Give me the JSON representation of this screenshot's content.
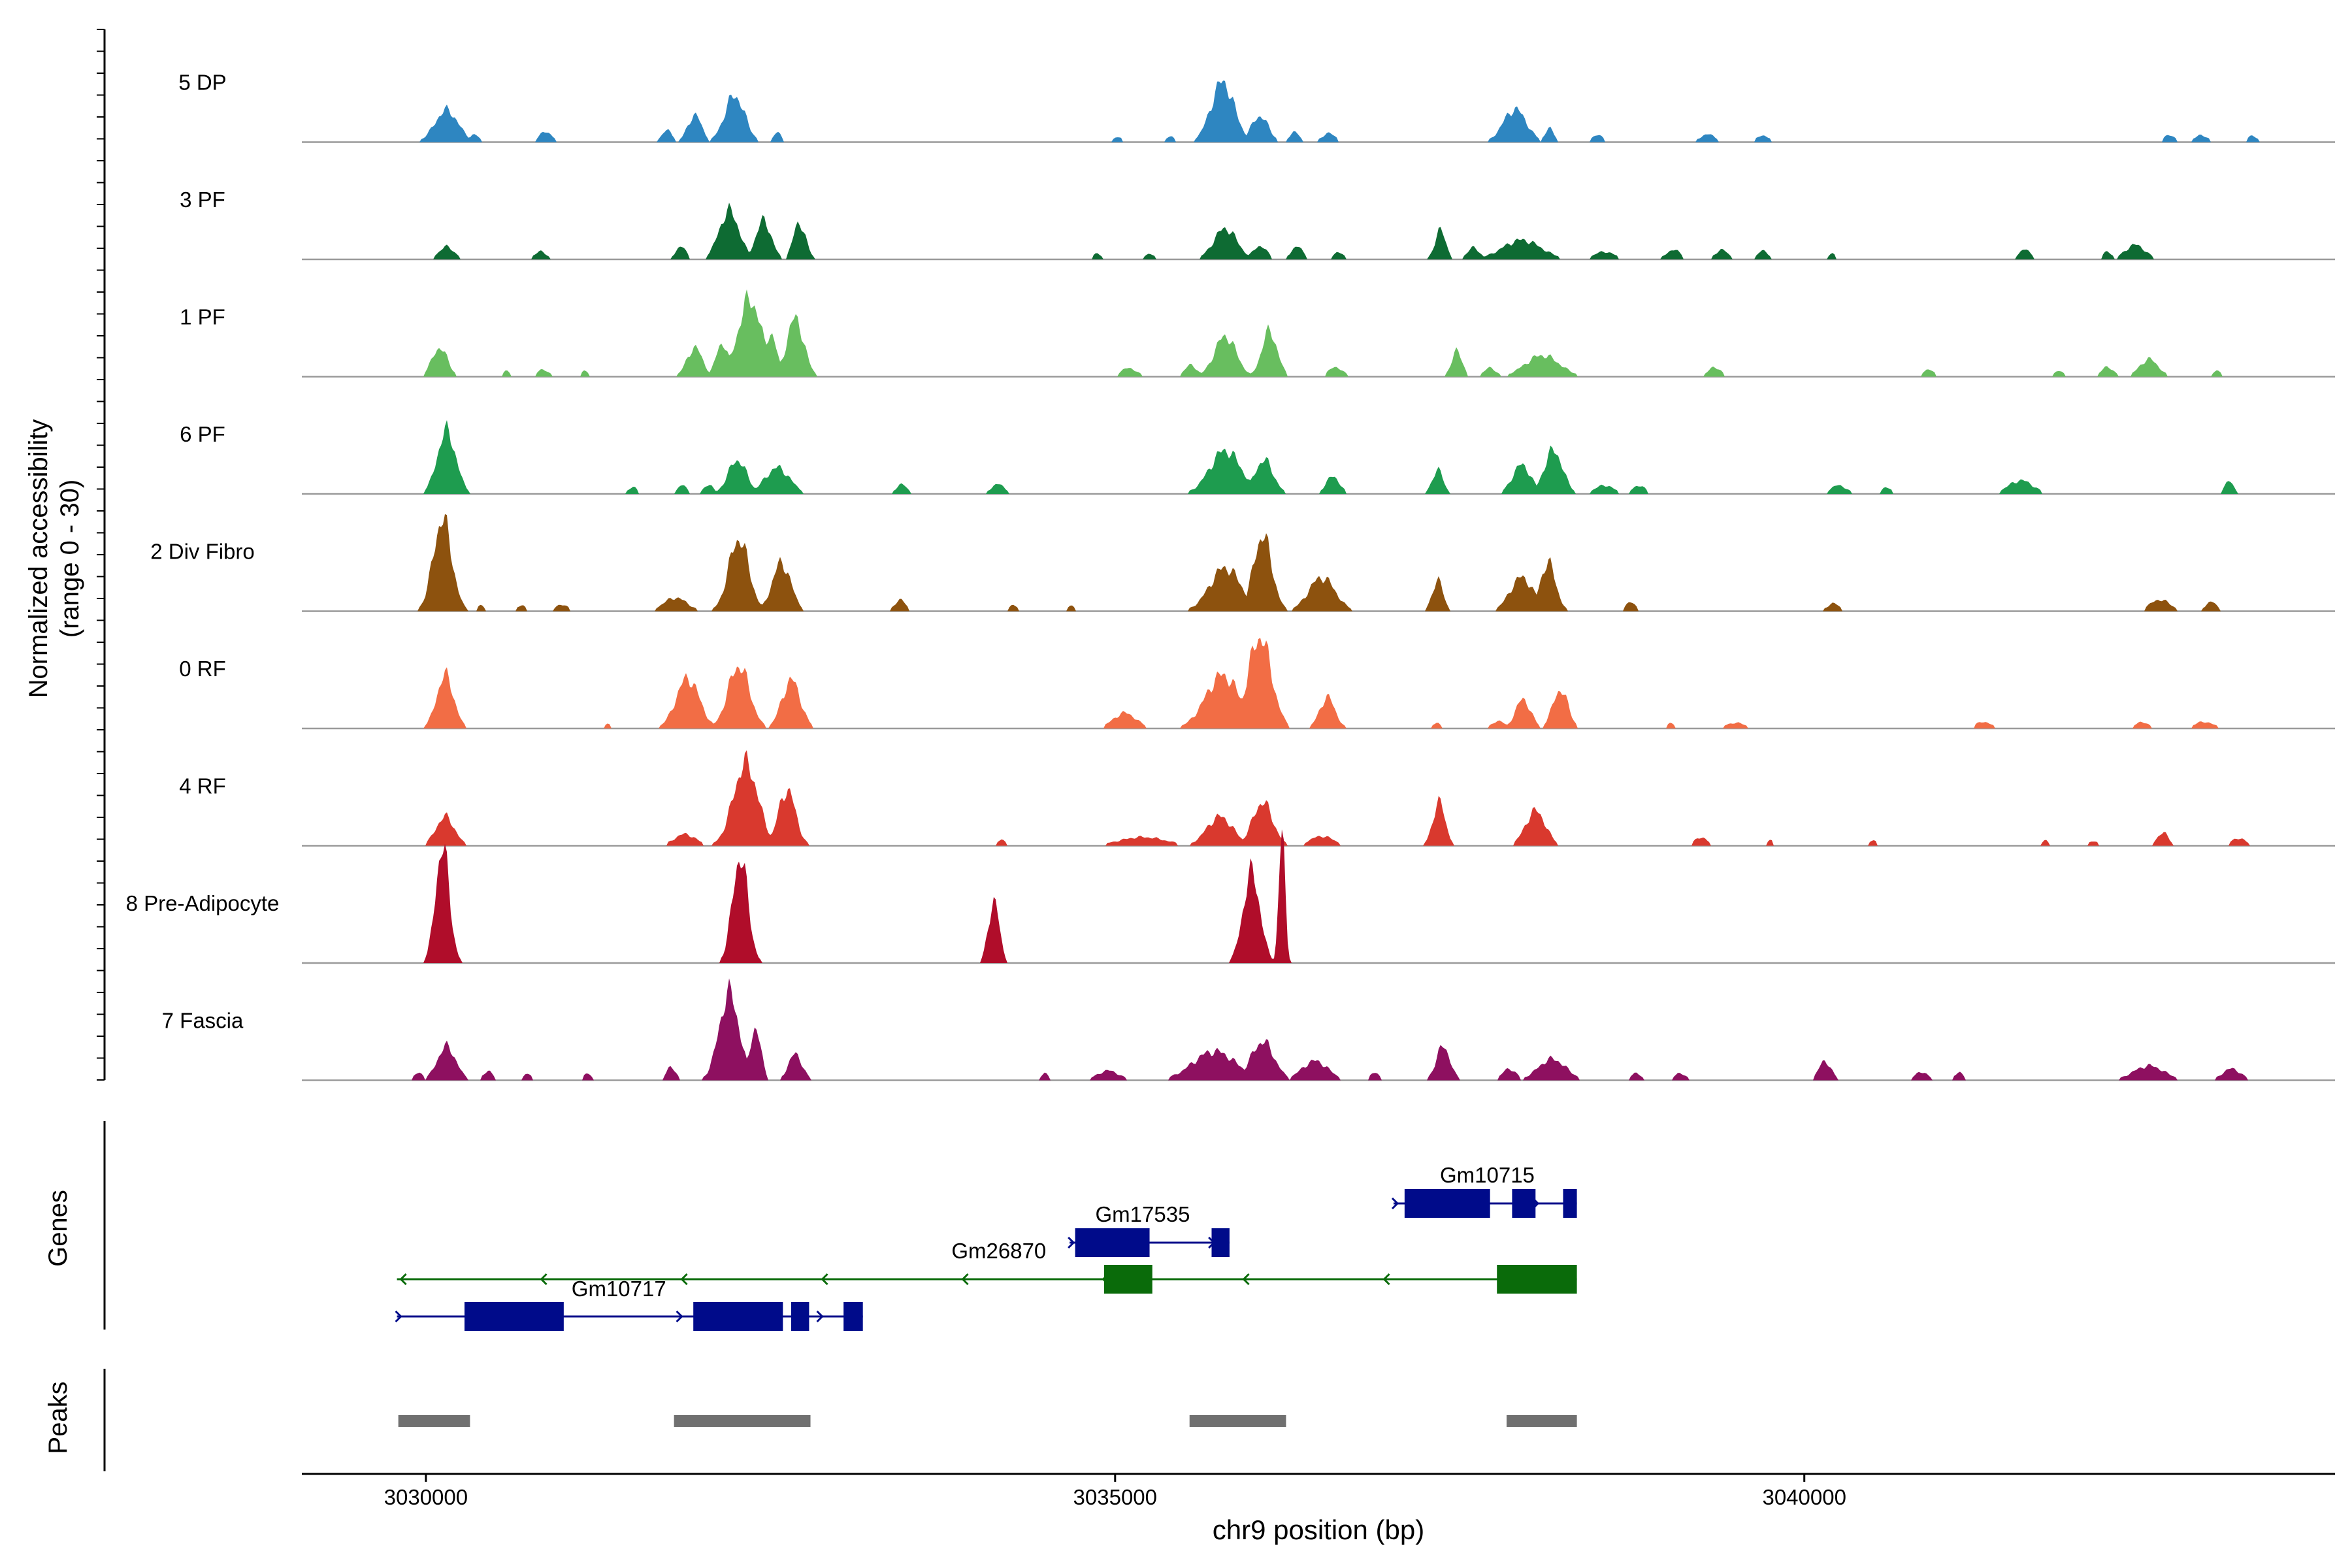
{
  "chart_data": {
    "type": "area",
    "title": "",
    "xlabel": "chr9 position (bp)",
    "ylabel_line1": "Normalized accessibility",
    "ylabel_line2": "(range 0 - 30)",
    "xlim": [
      3029100,
      3043850
    ],
    "ylim": [
      0,
      30
    ],
    "x_ticks": [
      3030000,
      3035000,
      3040000
    ],
    "x_tick_labels": [
      "3030000",
      "3035000",
      "3040000"
    ],
    "series": [
      {
        "name": "5 DP",
        "color": "#2E86C1",
        "peaks": [
          [
            3030150,
            150,
            0.33
          ],
          [
            3030350,
            60,
            0.08
          ],
          [
            3030870,
            80,
            0.11
          ],
          [
            3031750,
            70,
            0.12
          ],
          [
            3031950,
            90,
            0.28
          ],
          [
            3032240,
            130,
            0.48
          ],
          [
            3032550,
            50,
            0.1
          ],
          [
            3035020,
            50,
            0.06
          ],
          [
            3035400,
            50,
            0.06
          ],
          [
            3035780,
            150,
            0.62
          ],
          [
            3036050,
            110,
            0.27
          ],
          [
            3036300,
            60,
            0.11
          ],
          [
            3036550,
            90,
            0.09
          ],
          [
            3037900,
            150,
            0.34
          ],
          [
            3038150,
            60,
            0.14
          ],
          [
            3038500,
            80,
            0.07
          ],
          [
            3039300,
            100,
            0.08
          ],
          [
            3039700,
            80,
            0.07
          ],
          [
            3042650,
            80,
            0.07
          ],
          [
            3042880,
            90,
            0.07
          ],
          [
            3043250,
            60,
            0.07
          ]
        ]
      },
      {
        "name": "3 PF",
        "color": "#0E6B33",
        "peaks": [
          [
            3030150,
            100,
            0.13
          ],
          [
            3030830,
            80,
            0.08
          ],
          [
            3031850,
            70,
            0.13
          ],
          [
            3032200,
            130,
            0.5
          ],
          [
            3032450,
            100,
            0.4
          ],
          [
            3032710,
            80,
            0.38
          ],
          [
            3034870,
            60,
            0.06
          ],
          [
            3035250,
            60,
            0.06
          ],
          [
            3035800,
            150,
            0.32
          ],
          [
            3036050,
            90,
            0.14
          ],
          [
            3036320,
            80,
            0.13
          ],
          [
            3036620,
            60,
            0.08
          ],
          [
            3037360,
            70,
            0.3
          ],
          [
            3037600,
            80,
            0.12
          ],
          [
            3037950,
            250,
            0.2
          ],
          [
            3038550,
            130,
            0.08
          ],
          [
            3039050,
            90,
            0.1
          ],
          [
            3039400,
            80,
            0.1
          ],
          [
            3039700,
            60,
            0.1
          ],
          [
            3041600,
            80,
            0.1
          ],
          [
            3042400,
            130,
            0.15
          ],
          [
            3042200,
            60,
            0.08
          ],
          [
            3040200,
            50,
            0.06
          ]
        ]
      },
      {
        "name": "1 PF",
        "color": "#68BE5F",
        "peaks": [
          [
            3030100,
            100,
            0.3
          ],
          [
            3030580,
            50,
            0.06
          ],
          [
            3030850,
            80,
            0.07
          ],
          [
            3031150,
            50,
            0.06
          ],
          [
            3031950,
            100,
            0.3
          ],
          [
            3032150,
            80,
            0.35
          ],
          [
            3032350,
            150,
            0.8
          ],
          [
            3032500,
            80,
            0.45
          ],
          [
            3032680,
            110,
            0.6
          ],
          [
            3035100,
            100,
            0.09
          ],
          [
            3035550,
            80,
            0.12
          ],
          [
            3035800,
            140,
            0.42
          ],
          [
            3036120,
            100,
            0.47
          ],
          [
            3036600,
            90,
            0.1
          ],
          [
            3037480,
            70,
            0.26
          ],
          [
            3037720,
            80,
            0.09
          ],
          [
            3038100,
            220,
            0.22
          ],
          [
            3039350,
            80,
            0.1
          ],
          [
            3040900,
            80,
            0.07
          ],
          [
            3041850,
            60,
            0.06
          ],
          [
            3042200,
            80,
            0.1
          ],
          [
            3042500,
            120,
            0.18
          ],
          [
            3043000,
            60,
            0.06
          ]
        ]
      },
      {
        "name": "6 PF",
        "color": "#1E9C4F",
        "peaks": [
          [
            3030150,
            120,
            0.65
          ],
          [
            3031500,
            60,
            0.07
          ],
          [
            3031860,
            60,
            0.09
          ],
          [
            3032050,
            60,
            0.1
          ],
          [
            3032260,
            120,
            0.35
          ],
          [
            3032550,
            160,
            0.27
          ],
          [
            3033450,
            70,
            0.1
          ],
          [
            3034150,
            90,
            0.1
          ],
          [
            3035800,
            200,
            0.45
          ],
          [
            3036080,
            120,
            0.35
          ],
          [
            3036580,
            90,
            0.18
          ],
          [
            3037340,
            70,
            0.25
          ],
          [
            3037950,
            120,
            0.3
          ],
          [
            3038180,
            120,
            0.45
          ],
          [
            3038550,
            120,
            0.09
          ],
          [
            3038800,
            80,
            0.09
          ],
          [
            3040250,
            100,
            0.09
          ],
          [
            3040600,
            60,
            0.07
          ],
          [
            3041570,
            160,
            0.14
          ],
          [
            3043080,
            60,
            0.13
          ]
        ]
      },
      {
        "name": "2 Div Fibro",
        "color": "#8D520E",
        "peaks": [
          [
            3030120,
            120,
            0.95
          ],
          [
            3030400,
            50,
            0.06
          ],
          [
            3030690,
            60,
            0.06
          ],
          [
            3030990,
            80,
            0.07
          ],
          [
            3031810,
            150,
            0.14
          ],
          [
            3032270,
            130,
            0.75
          ],
          [
            3032580,
            120,
            0.5
          ],
          [
            3033440,
            70,
            0.12
          ],
          [
            3034260,
            60,
            0.06
          ],
          [
            3034680,
            50,
            0.06
          ],
          [
            3035800,
            200,
            0.45
          ],
          [
            3036070,
            120,
            0.78
          ],
          [
            3036500,
            170,
            0.35
          ],
          [
            3037340,
            70,
            0.32
          ],
          [
            3037950,
            150,
            0.35
          ],
          [
            3038140,
            100,
            0.5
          ],
          [
            3038740,
            70,
            0.09
          ],
          [
            3040210,
            80,
            0.08
          ],
          [
            3042580,
            130,
            0.12
          ],
          [
            3042950,
            70,
            0.1
          ]
        ]
      },
      {
        "name": "0 RF",
        "color": "#F26D45",
        "peaks": [
          [
            3030140,
            110,
            0.55
          ],
          [
            3031320,
            40,
            0.05
          ],
          [
            3031900,
            150,
            0.52
          ],
          [
            3032270,
            140,
            0.65
          ],
          [
            3032650,
            120,
            0.5
          ],
          [
            3035070,
            150,
            0.16
          ],
          [
            3035780,
            220,
            0.55
          ],
          [
            3036050,
            150,
            0.95
          ],
          [
            3036540,
            100,
            0.32
          ],
          [
            3037330,
            50,
            0.06
          ],
          [
            3037780,
            80,
            0.08
          ],
          [
            3037960,
            100,
            0.3
          ],
          [
            3038230,
            100,
            0.4
          ],
          [
            3039030,
            50,
            0.06
          ],
          [
            3039500,
            120,
            0.06
          ],
          [
            3041300,
            100,
            0.07
          ],
          [
            3042450,
            80,
            0.07
          ],
          [
            3042900,
            120,
            0.07
          ]
        ]
      },
      {
        "name": "4 RF",
        "color": "#D9392E",
        "peaks": [
          [
            3030140,
            120,
            0.3
          ],
          [
            3031880,
            140,
            0.12
          ],
          [
            3032320,
            160,
            0.85
          ],
          [
            3032620,
            110,
            0.58
          ],
          [
            3034180,
            60,
            0.06
          ],
          [
            3035200,
            300,
            0.09
          ],
          [
            3035760,
            170,
            0.3
          ],
          [
            3036070,
            130,
            0.45
          ],
          [
            3036500,
            150,
            0.1
          ],
          [
            3037350,
            80,
            0.45
          ],
          [
            3038050,
            130,
            0.36
          ],
          [
            3039250,
            80,
            0.09
          ],
          [
            3039750,
            40,
            0.06
          ],
          [
            3040500,
            50,
            0.06
          ],
          [
            3041750,
            40,
            0.06
          ],
          [
            3042100,
            60,
            0.05
          ],
          [
            3042600,
            70,
            0.14
          ],
          [
            3043150,
            90,
            0.08
          ]
        ]
      },
      {
        "name": "8 Pre-Adipocyte",
        "color": "#B00D2A",
        "peaks": [
          [
            3030120,
            90,
            1.2
          ],
          [
            3032280,
            100,
            1.1
          ],
          [
            3034120,
            70,
            0.65
          ],
          [
            3035990,
            110,
            0.93
          ],
          [
            3036210,
            40,
            1.35
          ]
        ]
      },
      {
        "name": "7 Fascia",
        "color": "#8E1060",
        "peaks": [
          [
            3030150,
            120,
            0.35
          ],
          [
            3030450,
            60,
            0.1
          ],
          [
            3029950,
            60,
            0.08
          ],
          [
            3030740,
            50,
            0.07
          ],
          [
            3031170,
            50,
            0.07
          ],
          [
            3031780,
            60,
            0.14
          ],
          [
            3032200,
            130,
            0.9
          ],
          [
            3032390,
            70,
            0.55
          ],
          [
            3032680,
            90,
            0.27
          ],
          [
            3034490,
            50,
            0.07
          ],
          [
            3034950,
            140,
            0.1
          ],
          [
            3035720,
            280,
            0.3
          ],
          [
            3036070,
            150,
            0.4
          ],
          [
            3036450,
            170,
            0.2
          ],
          [
            3036880,
            60,
            0.08
          ],
          [
            3037380,
            90,
            0.35
          ],
          [
            3037860,
            90,
            0.12
          ],
          [
            3038170,
            180,
            0.22
          ],
          [
            3038780,
            60,
            0.08
          ],
          [
            3039100,
            80,
            0.07
          ],
          [
            3040150,
            80,
            0.2
          ],
          [
            3040850,
            80,
            0.09
          ],
          [
            3041120,
            60,
            0.08
          ],
          [
            3042500,
            200,
            0.15
          ],
          [
            3043100,
            120,
            0.12
          ]
        ]
      }
    ],
    "genes_track": {
      "label": "Genes",
      "colors": {
        "plus_strand": "#000B8A",
        "minus_strand": "#0A6B0A"
      },
      "genes": [
        {
          "name": "Gm10715",
          "strand": "+",
          "start": 3037020,
          "end": 3038350,
          "exons": [
            [
              3037100,
              3037720
            ],
            [
              3037880,
              3038050
            ],
            [
              3038250,
              3038350
            ]
          ]
        },
        {
          "name": "Gm17535",
          "strand": "+",
          "start": 3034670,
          "end": 3035830,
          "exons": [
            [
              3034710,
              3035250
            ],
            [
              3035700,
              3035830
            ]
          ]
        },
        {
          "name": "Gm26870",
          "strand": "-",
          "start": 3029790,
          "end": 3038350,
          "exons": [
            [
              3034920,
              3035270
            ],
            [
              3037770,
              3038350
            ]
          ]
        },
        {
          "name": "Gm10717",
          "strand": "+",
          "start": 3029790,
          "end": 3033170,
          "exons": [
            [
              3030280,
              3031000
            ],
            [
              3031940,
              3032590
            ],
            [
              3032650,
              3032780
            ],
            [
              3033030,
              3033170
            ]
          ]
        }
      ]
    },
    "peaks_track": {
      "label": "Peaks",
      "color": "#707070",
      "regions": [
        [
          3029800,
          3030320
        ],
        [
          3031800,
          3032790
        ],
        [
          3035540,
          3036240
        ],
        [
          3037840,
          3038350
        ]
      ]
    }
  }
}
